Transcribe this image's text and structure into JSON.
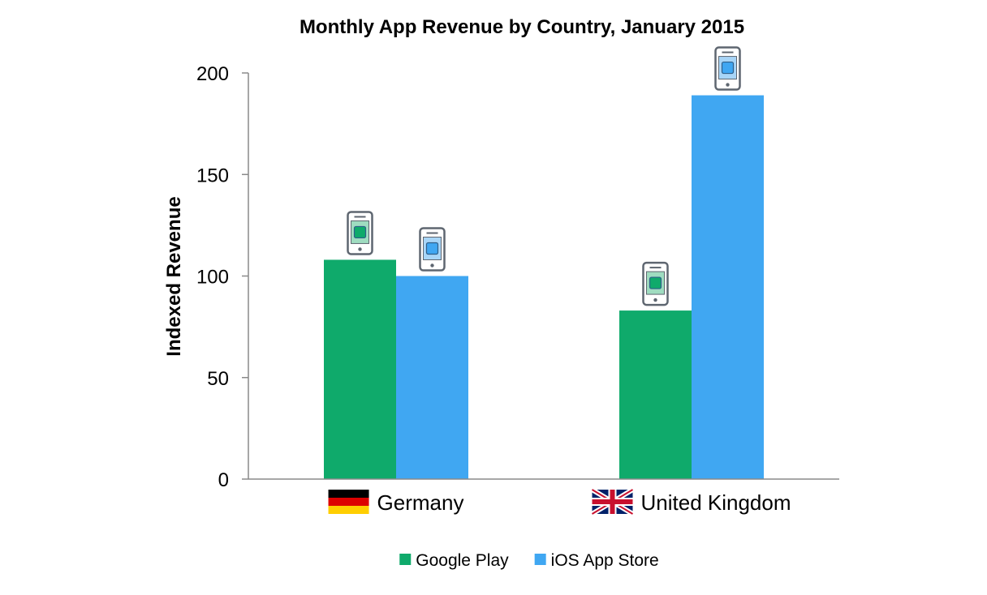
{
  "chart_data": {
    "type": "bar",
    "title": "Monthly App Revenue by Country, January 2015",
    "ylabel": "Indexed Revenue",
    "xlabel": "",
    "ylim": [
      0,
      200
    ],
    "yticks": [
      "0",
      "50",
      "100",
      "150",
      "200"
    ],
    "categories": [
      "Germany",
      "United Kingdom"
    ],
    "series": [
      {
        "name": "Google Play",
        "values": [
          108,
          83
        ],
        "color": "#0faa6b"
      },
      {
        "name": "iOS App Store",
        "values": [
          100,
          189
        ],
        "color": "#40a7f2"
      }
    ],
    "legend_position": "bottom",
    "grid": false
  },
  "icons": {
    "bar_marker": "phone-icon",
    "category_flags": [
      "germany-flag-icon",
      "uk-flag-icon"
    ]
  }
}
